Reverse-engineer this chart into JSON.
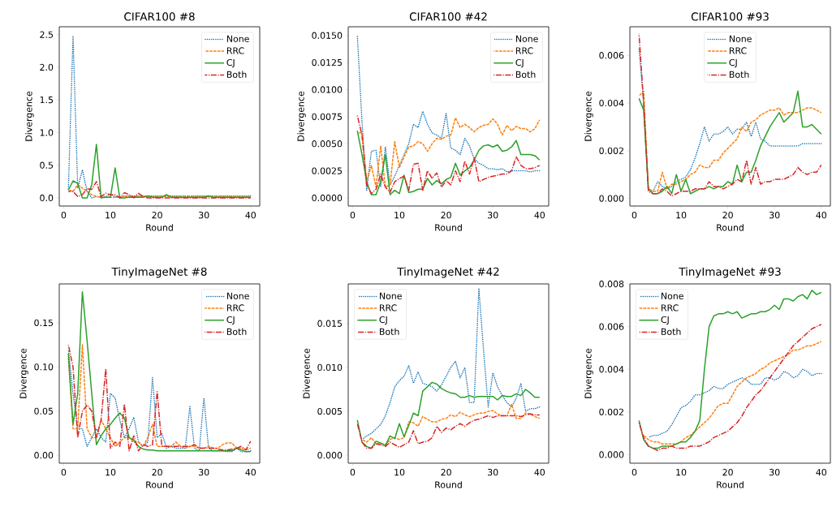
{
  "chart_data": [
    {
      "type": "line",
      "title": "CIFAR100  #8",
      "xlabel": "Round",
      "ylabel": "Divergence",
      "legend": "top right",
      "x": [
        1,
        2,
        3,
        4,
        5,
        6,
        7,
        8,
        9,
        10,
        11,
        12,
        13,
        14,
        15,
        16,
        17,
        18,
        19,
        20,
        21,
        22,
        23,
        24,
        25,
        26,
        27,
        28,
        29,
        30,
        31,
        32,
        33,
        34,
        35,
        36,
        37,
        38,
        39,
        40
      ],
      "xlim": [
        -0.95,
        41.95
      ],
      "xticks": [
        0,
        10,
        20,
        30,
        40
      ],
      "ylim": [
        -0.125,
        2.62
      ],
      "yticks": [
        {
          "value": 0,
          "label": "0.0"
        },
        {
          "value": 0.5,
          "label": "0.5"
        },
        {
          "value": 1,
          "label": "1.0"
        },
        {
          "value": 1.5,
          "label": "1.5"
        },
        {
          "value": 2,
          "label": "2.0"
        },
        {
          "value": 2.5,
          "label": "2.5"
        }
      ],
      "series": [
        {
          "name": "None",
          "color": "#1f77b4",
          "line_style": "dotted",
          "values": [
            0.13,
            2.48,
            0.15,
            0.43,
            0.1,
            0.0,
            0.02,
            0.01,
            0.02,
            0.05,
            0.02,
            0.0,
            0.03,
            0.03,
            0.03,
            0.03,
            0.03,
            0.03,
            0.03,
            0.03,
            0.03,
            0.03,
            0.03,
            0.03,
            0.03,
            0.03,
            0.03,
            0.03,
            0.03,
            0.03,
            0.03,
            0.03,
            0.03,
            0.03,
            0.03,
            0.03,
            0.03,
            0.03,
            0.03,
            0.03
          ]
        },
        {
          "name": "RRC",
          "color": "#ff7f0e",
          "line_style": "dashed",
          "values": [
            0.12,
            0.1,
            0.2,
            0.15,
            0.1,
            0.05,
            0.02,
            0.01,
            0.01,
            0.01,
            0.01,
            0.01,
            0.02,
            0.02,
            0.02,
            0.02,
            0.02,
            0.02,
            0.02,
            0.02,
            0.02,
            0.02,
            0.02,
            0.02,
            0.02,
            0.02,
            0.02,
            0.02,
            0.02,
            0.02,
            0.02,
            0.02,
            0.02,
            0.02,
            0.02,
            0.02,
            0.02,
            0.02,
            0.02,
            0.02
          ]
        },
        {
          "name": "CJ",
          "color": "#2ca02c",
          "line_style": "solid",
          "values": [
            0.12,
            0.26,
            0.22,
            0.0,
            0.0,
            0.2,
            0.82,
            0.0,
            0.01,
            0.01,
            0.46,
            0.0,
            0.0,
            0.01,
            0.01,
            0.01,
            0.01,
            0.03,
            0.01,
            0.01,
            0.01,
            0.05,
            0.01,
            0.01,
            0.01,
            0.01,
            0.01,
            0.01,
            0.01,
            0.01,
            0.03,
            0.01,
            0.01,
            0.01,
            0.01,
            0.01,
            0.01,
            0.01,
            0.01,
            0.01
          ]
        },
        {
          "name": "Both",
          "color": "#d62728",
          "line_style": "dashdot",
          "values": [
            0.1,
            0.1,
            0.02,
            0.05,
            0.14,
            0.13,
            0.25,
            0.02,
            0.07,
            0.05,
            0.05,
            0.0,
            0.08,
            0.05,
            0.0,
            0.07,
            0.02,
            0.0,
            0.0,
            0.0,
            0.0,
            0.0,
            0.0,
            0.0,
            0.0,
            0.0,
            0.0,
            0.0,
            0.0,
            0.0,
            0.0,
            0.0,
            0.0,
            0.0,
            0.0,
            0.0,
            0.0,
            0.0,
            0.0,
            0.0
          ]
        }
      ]
    },
    {
      "type": "line",
      "title": "CIFAR100  #42",
      "xlabel": "Round",
      "ylabel": "Divergence",
      "legend": "top right",
      "x": [
        1,
        2,
        3,
        4,
        5,
        6,
        7,
        8,
        9,
        10,
        11,
        12,
        13,
        14,
        15,
        16,
        17,
        18,
        19,
        20,
        21,
        22,
        23,
        24,
        25,
        26,
        27,
        28,
        29,
        30,
        31,
        32,
        33,
        34,
        35,
        36,
        37,
        38,
        39,
        40
      ],
      "xlim": [
        -0.95,
        41.95
      ],
      "xticks": [
        0,
        10,
        20,
        30,
        40
      ],
      "ylim": [
        -0.00075,
        0.0158
      ],
      "yticks": [
        {
          "value": 0,
          "label": "0.0000"
        },
        {
          "value": 0.0025,
          "label": "0.0025"
        },
        {
          "value": 0.005,
          "label": "0.0050"
        },
        {
          "value": 0.0075,
          "label": "0.0075"
        },
        {
          "value": 0.01,
          "label": "0.0100"
        },
        {
          "value": 0.0125,
          "label": "0.0125"
        },
        {
          "value": 0.015,
          "label": "0.0150"
        }
      ],
      "series": [
        {
          "name": "None",
          "color": "#1f77b4",
          "line_style": "dotted",
          "values": [
            0.015,
            0.007,
            0.0007,
            0.0043,
            0.0044,
            0.001,
            0.0047,
            0.0012,
            0.002,
            0.003,
            0.004,
            0.005,
            0.0068,
            0.0065,
            0.008,
            0.0068,
            0.006,
            0.0058,
            0.0055,
            0.0078,
            0.0046,
            0.0044,
            0.004,
            0.0055,
            0.0048,
            0.0036,
            0.0032,
            0.003,
            0.0027,
            0.0027,
            0.0026,
            0.0027,
            0.0024,
            0.0025,
            0.0025,
            0.0025,
            0.0025,
            0.0024,
            0.0025,
            0.0025
          ]
        },
        {
          "name": "RRC",
          "color": "#ff7f0e",
          "line_style": "dashed",
          "values": [
            0.006,
            0.006,
            0.0015,
            0.003,
            0.001,
            0.0048,
            0.001,
            0.0012,
            0.0052,
            0.0028,
            0.0038,
            0.0047,
            0.0048,
            0.0052,
            0.005,
            0.0043,
            0.005,
            0.0055,
            0.0054,
            0.0057,
            0.0058,
            0.0074,
            0.0065,
            0.0068,
            0.0065,
            0.0061,
            0.0065,
            0.0067,
            0.0068,
            0.0073,
            0.0068,
            0.0058,
            0.0067,
            0.0062,
            0.0066,
            0.0064,
            0.0064,
            0.0061,
            0.0064,
            0.0072
          ]
        },
        {
          "name": "CJ",
          "color": "#2ca02c",
          "line_style": "solid",
          "values": [
            0.0062,
            0.004,
            0.0015,
            0.0003,
            0.0003,
            0.0015,
            0.004,
            0.0003,
            0.0007,
            0.0004,
            0.0021,
            0.0005,
            0.0006,
            0.0008,
            0.0008,
            0.0018,
            0.0012,
            0.0016,
            0.0013,
            0.0017,
            0.0019,
            0.0032,
            0.0021,
            0.0025,
            0.0028,
            0.0035,
            0.0044,
            0.0048,
            0.0049,
            0.0047,
            0.0049,
            0.0043,
            0.0044,
            0.0047,
            0.0053,
            0.004,
            0.004,
            0.004,
            0.0039,
            0.0035
          ]
        },
        {
          "name": "Both",
          "color": "#d62728",
          "line_style": "dashdot",
          "values": [
            0.0076,
            0.0058,
            0.0012,
            0.0004,
            0.0008,
            0.0022,
            0.001,
            0.0005,
            0.0015,
            0.0018,
            0.002,
            0.0007,
            0.0031,
            0.0032,
            0.0007,
            0.0025,
            0.0018,
            0.0023,
            0.001,
            0.0016,
            0.0012,
            0.0025,
            0.0015,
            0.0034,
            0.0022,
            0.0037,
            0.0015,
            0.0017,
            0.0019,
            0.002,
            0.0021,
            0.0022,
            0.0022,
            0.0025,
            0.0038,
            0.003,
            0.0027,
            0.0027,
            0.0028,
            0.003
          ]
        }
      ]
    },
    {
      "type": "line",
      "title": "CIFAR100  #93",
      "xlabel": "Round",
      "ylabel": "Divergence",
      "legend": "top",
      "x": [
        1,
        2,
        3,
        4,
        5,
        6,
        7,
        8,
        9,
        10,
        11,
        12,
        13,
        14,
        15,
        16,
        17,
        18,
        19,
        20,
        21,
        22,
        23,
        24,
        25,
        26,
        27,
        28,
        29,
        30,
        31,
        32,
        33,
        34,
        35,
        36,
        37,
        38,
        39,
        40
      ],
      "xlim": [
        -0.95,
        41.95
      ],
      "xticks": [
        0,
        10,
        20,
        30,
        40
      ],
      "ylim": [
        -0.00032,
        0.0072
      ],
      "yticks": [
        {
          "value": 0,
          "label": "0.000"
        },
        {
          "value": 0.002,
          "label": "0.002"
        },
        {
          "value": 0.004,
          "label": "0.004"
        },
        {
          "value": 0.006,
          "label": "0.006"
        }
      ],
      "series": [
        {
          "name": "None",
          "color": "#1f77b4",
          "line_style": "dotted",
          "values": [
            0.0063,
            0.004,
            0.0004,
            0.0003,
            0.0007,
            0.0005,
            0.0004,
            0.0005,
            0.0007,
            0.0008,
            0.0009,
            0.0012,
            0.0017,
            0.0023,
            0.003,
            0.0024,
            0.0027,
            0.0027,
            0.0028,
            0.003,
            0.0027,
            0.0029,
            0.0029,
            0.0032,
            0.0026,
            0.0032,
            0.0025,
            0.0024,
            0.0022,
            0.0022,
            0.0022,
            0.0022,
            0.0022,
            0.0022,
            0.0022,
            0.0023,
            0.0023,
            0.0023,
            0.0023,
            0.0023
          ]
        },
        {
          "name": "RRC",
          "color": "#ff7f0e",
          "line_style": "dashed",
          "values": [
            0.0043,
            0.0045,
            0.0004,
            0.0003,
            0.0003,
            0.0011,
            0.0004,
            0.0006,
            0.0006,
            0.0007,
            0.0008,
            0.001,
            0.0011,
            0.0014,
            0.0013,
            0.0013,
            0.0016,
            0.0016,
            0.0019,
            0.0021,
            0.0023,
            0.0025,
            0.003,
            0.0028,
            0.0032,
            0.0033,
            0.0035,
            0.0036,
            0.0037,
            0.0037,
            0.0038,
            0.0035,
            0.0036,
            0.0036,
            0.0036,
            0.0037,
            0.0038,
            0.0038,
            0.0037,
            0.0036
          ]
        },
        {
          "name": "CJ",
          "color": "#2ca02c",
          "line_style": "solid",
          "values": [
            0.0042,
            0.0037,
            0.0004,
            0.0002,
            0.0002,
            0.0003,
            0.0005,
            0.0002,
            0.001,
            0.0003,
            0.0008,
            0.0002,
            0.0003,
            0.0004,
            0.0004,
            0.0005,
            0.0004,
            0.0005,
            0.0005,
            0.0007,
            0.0006,
            0.0014,
            0.0007,
            0.0011,
            0.0011,
            0.0016,
            0.0022,
            0.0026,
            0.003,
            0.0033,
            0.0036,
            0.0032,
            0.0034,
            0.0036,
            0.0045,
            0.003,
            0.003,
            0.0031,
            0.0029,
            0.0027
          ]
        },
        {
          "name": "Both",
          "color": "#d62728",
          "line_style": "dashdot",
          "values": [
            0.0069,
            0.004,
            0.0003,
            0.0002,
            0.0002,
            0.0004,
            0.0003,
            0.0001,
            0.0002,
            0.0003,
            0.0003,
            0.0003,
            0.0004,
            0.0004,
            0.0004,
            0.0007,
            0.0005,
            0.0005,
            0.0004,
            0.0005,
            0.0006,
            0.0008,
            0.0007,
            0.0016,
            0.0006,
            0.0013,
            0.0006,
            0.0007,
            0.0007,
            0.0008,
            0.0008,
            0.0008,
            0.0009,
            0.001,
            0.0013,
            0.0011,
            0.001,
            0.0011,
            0.0011,
            0.0014
          ]
        }
      ]
    },
    {
      "type": "line",
      "title": "TinyImageNet  #8",
      "xlabel": "Round",
      "ylabel": "Divergence",
      "legend": "top right",
      "x": [
        1,
        2,
        3,
        4,
        5,
        6,
        7,
        8,
        9,
        10,
        11,
        12,
        13,
        14,
        15,
        16,
        17,
        18,
        19,
        20,
        21,
        22,
        23,
        24,
        25,
        26,
        27,
        28,
        29,
        30,
        31,
        32,
        33,
        34,
        35,
        36,
        37,
        38,
        39,
        40
      ],
      "xlim": [
        -0.95,
        41.95
      ],
      "xticks": [
        0,
        10,
        20,
        30,
        40
      ],
      "ylim": [
        -0.009,
        0.194
      ],
      "yticks": [
        {
          "value": 0,
          "label": "0.00"
        },
        {
          "value": 0.05,
          "label": "0.05"
        },
        {
          "value": 0.1,
          "label": "0.10"
        },
        {
          "value": 0.15,
          "label": "0.15"
        }
      ],
      "series": [
        {
          "name": "None",
          "color": "#1f77b4",
          "line_style": "dotted",
          "values": [
            0.12,
            0.07,
            0.03,
            0.03,
            0.01,
            0.02,
            0.03,
            0.02,
            0.015,
            0.07,
            0.065,
            0.04,
            0.02,
            0.03,
            0.043,
            0.015,
            0.01,
            0.015,
            0.088,
            0.02,
            0.025,
            0.008,
            0.01,
            0.008,
            0.008,
            0.008,
            0.055,
            0.008,
            0.005,
            0.065,
            0.008,
            0.005,
            0.005,
            0.005,
            0.004,
            0.004,
            0.008,
            0.004,
            0.004,
            0.005
          ]
        },
        {
          "name": "RRC",
          "color": "#ff7f0e",
          "line_style": "dashed",
          "values": [
            0.11,
            0.03,
            0.03,
            0.125,
            0.03,
            0.02,
            0.02,
            0.04,
            0.03,
            0.02,
            0.01,
            0.015,
            0.02,
            0.02,
            0.015,
            0.015,
            0.01,
            0.02,
            0.035,
            0.01,
            0.01,
            0.01,
            0.01,
            0.015,
            0.01,
            0.008,
            0.01,
            0.01,
            0.008,
            0.008,
            0.01,
            0.008,
            0.008,
            0.012,
            0.014,
            0.014,
            0.008,
            0.008,
            0.006,
            0.008
          ]
        },
        {
          "name": "CJ",
          "color": "#2ca02c",
          "line_style": "solid",
          "values": [
            0.115,
            0.035,
            0.07,
            0.185,
            0.13,
            0.07,
            0.012,
            0.022,
            0.03,
            0.035,
            0.042,
            0.048,
            0.042,
            0.02,
            0.017,
            0.01,
            0.007,
            0.006,
            0.006,
            0.005,
            0.005,
            0.005,
            0.005,
            0.005,
            0.005,
            0.005,
            0.005,
            0.005,
            0.005,
            0.005,
            0.005,
            0.005,
            0.005,
            0.005,
            0.005,
            0.005,
            0.008,
            0.006,
            0.004,
            0.004
          ]
        },
        {
          "name": "Both",
          "color": "#d62728",
          "line_style": "dashdot",
          "values": [
            0.125,
            0.1,
            0.02,
            0.05,
            0.057,
            0.05,
            0.02,
            0.04,
            0.098,
            0.008,
            0.015,
            0.01,
            0.058,
            0.005,
            0.022,
            0.005,
            0.012,
            0.01,
            0.012,
            0.072,
            0.01,
            0.01,
            0.01,
            0.01,
            0.01,
            0.01,
            0.01,
            0.012,
            0.008,
            0.008,
            0.008,
            0.008,
            0.007,
            0.006,
            0.006,
            0.007,
            0.008,
            0.01,
            0.006,
            0.016
          ]
        }
      ]
    },
    {
      "type": "line",
      "title": "TinyImageNet  #42",
      "xlabel": "Round",
      "ylabel": "Divergence",
      "legend": "top left",
      "x": [
        1,
        2,
        3,
        4,
        5,
        6,
        7,
        8,
        9,
        10,
        11,
        12,
        13,
        14,
        15,
        16,
        17,
        18,
        19,
        20,
        21,
        22,
        23,
        24,
        25,
        26,
        27,
        28,
        29,
        30,
        31,
        32,
        33,
        34,
        35,
        36,
        37,
        38,
        39,
        40
      ],
      "xlim": [
        -0.95,
        41.95
      ],
      "xticks": [
        0,
        10,
        20,
        30,
        40
      ],
      "ylim": [
        -0.0009,
        0.0195
      ],
      "yticks": [
        {
          "value": 0,
          "label": "0.000"
        },
        {
          "value": 0.005,
          "label": "0.005"
        },
        {
          "value": 0.01,
          "label": "0.010"
        },
        {
          "value": 0.015,
          "label": "0.015"
        }
      ],
      "series": [
        {
          "name": "None",
          "color": "#1f77b4",
          "line_style": "dotted",
          "values": [
            null,
            0.0018,
            0.0022,
            0.0025,
            0.003,
            0.0035,
            0.0045,
            0.006,
            0.0078,
            0.0085,
            0.009,
            0.0102,
            0.0082,
            0.0095,
            0.0082,
            0.008,
            0.0078,
            0.0073,
            0.008,
            0.009,
            0.01,
            0.0107,
            0.0088,
            0.01,
            0.006,
            0.006,
            0.019,
            0.012,
            0.0055,
            0.0094,
            0.0078,
            0.0068,
            0.006,
            0.0055,
            0.0065,
            0.0082,
            0.005,
            0.0053,
            0.0053,
            0.0055
          ]
        },
        {
          "name": "RRC",
          "color": "#ff7f0e",
          "line_style": "dashed",
          "values": [
            null,
            0.0018,
            0.0015,
            0.002,
            0.0013,
            0.0014,
            0.0012,
            0.0018,
            0.002,
            0.0018,
            0.002,
            0.0038,
            0.0037,
            0.0033,
            0.0044,
            0.0041,
            0.0038,
            0.0038,
            0.0041,
            0.0042,
            0.0046,
            0.0044,
            0.0049,
            0.0046,
            0.0044,
            0.0046,
            0.0048,
            0.0048,
            0.005,
            0.0051,
            0.0047,
            0.0045,
            0.0045,
            0.0058,
            0.0042,
            0.0042,
            0.0048,
            0.0047,
            0.0044,
            0.0042
          ]
        },
        {
          "name": "CJ",
          "color": "#2ca02c",
          "line_style": "solid",
          "values": [
            0.004,
            0.0015,
            0.001,
            0.0008,
            0.0016,
            0.0014,
            0.0011,
            0.0022,
            0.0019,
            0.0036,
            0.0021,
            0.0034,
            0.0048,
            0.0045,
            0.0073,
            0.0078,
            0.0083,
            0.0081,
            0.0076,
            0.0073,
            0.0071,
            0.007,
            0.0066,
            0.0066,
            0.0068,
            0.0066,
            0.0067,
            0.0067,
            0.0067,
            0.0067,
            0.0063,
            0.0068,
            0.0067,
            0.0067,
            0.007,
            0.0068,
            0.0075,
            0.0071,
            0.0066,
            0.0066
          ]
        },
        {
          "name": "Both",
          "color": "#d62728",
          "line_style": "dashdot",
          "values": [
            0.0036,
            0.0015,
            0.0008,
            0.0008,
            0.0013,
            0.0012,
            0.001,
            0.0015,
            0.0012,
            0.0009,
            0.0012,
            0.0015,
            0.0028,
            0.0013,
            0.0015,
            0.0016,
            0.002,
            0.0033,
            0.0026,
            0.0031,
            0.0029,
            0.0033,
            0.0036,
            0.0033,
            0.0037,
            0.004,
            0.0041,
            0.0043,
            0.0045,
            0.0043,
            0.0045,
            0.0045,
            0.0045,
            0.0045,
            0.0045,
            0.0044,
            0.0046,
            0.0047,
            0.0046,
            0.0046
          ]
        }
      ]
    },
    {
      "type": "line",
      "title": "TinyImageNet  #93",
      "xlabel": "Round",
      "ylabel": "Divergence",
      "legend": "top left",
      "x": [
        1,
        2,
        3,
        4,
        5,
        6,
        7,
        8,
        9,
        10,
        11,
        12,
        13,
        14,
        15,
        16,
        17,
        18,
        19,
        20,
        21,
        22,
        23,
        24,
        25,
        26,
        27,
        28,
        29,
        30,
        31,
        32,
        33,
        34,
        35,
        36,
        37,
        38,
        39,
        40
      ],
      "xlim": [
        -0.95,
        41.95
      ],
      "xticks": [
        0,
        10,
        20,
        30,
        40
      ],
      "ylim": [
        -0.0004,
        0.008
      ],
      "yticks": [
        {
          "value": 0,
          "label": "0.000"
        },
        {
          "value": 0.002,
          "label": "0.002"
        },
        {
          "value": 0.004,
          "label": "0.004"
        },
        {
          "value": 0.006,
          "label": "0.006"
        },
        {
          "value": 0.008,
          "label": "0.008"
        }
      ],
      "series": [
        {
          "name": "None",
          "color": "#1f77b4",
          "line_style": "dotted",
          "values": [
            null,
            null,
            0.0008,
            0.0009,
            0.0009,
            0.001,
            0.0011,
            0.0014,
            0.0018,
            0.0022,
            0.0023,
            0.0025,
            0.0028,
            0.0028,
            0.0029,
            0.003,
            0.0032,
            0.0031,
            0.0031,
            0.0033,
            0.0034,
            0.0035,
            0.0036,
            0.0035,
            0.0033,
            0.0033,
            0.0033,
            0.0036,
            0.0036,
            0.0035,
            0.0036,
            0.0039,
            0.0038,
            0.0036,
            0.0037,
            0.004,
            0.0039,
            0.0037,
            0.0038,
            0.0038
          ]
        },
        {
          "name": "RRC",
          "color": "#ff7f0e",
          "line_style": "dashed",
          "values": [
            null,
            0.0009,
            0.0007,
            0.0006,
            0.0006,
            0.0005,
            0.0005,
            0.0005,
            0.0005,
            0.0006,
            0.0008,
            0.0009,
            0.0011,
            0.0013,
            0.0015,
            0.0017,
            0.002,
            0.0023,
            0.0024,
            0.0024,
            0.0028,
            0.0032,
            0.0034,
            0.0036,
            0.0037,
            0.0038,
            0.004,
            0.0041,
            0.0043,
            0.0044,
            0.0045,
            0.0046,
            0.0047,
            0.0049,
            0.0049,
            0.005,
            0.0051,
            0.0051,
            0.0052,
            0.0053
          ]
        },
        {
          "name": "CJ",
          "color": "#2ca02c",
          "line_style": "solid",
          "values": [
            0.0016,
            0.0007,
            0.0004,
            0.0003,
            0.0003,
            0.0004,
            0.0004,
            0.0004,
            0.0005,
            0.0006,
            0.0006,
            0.0008,
            0.0011,
            0.0016,
            0.004,
            0.006,
            0.0065,
            0.0066,
            0.0066,
            0.0067,
            0.0066,
            0.0067,
            0.0064,
            0.0065,
            0.0066,
            0.0066,
            0.0067,
            0.0067,
            0.0068,
            0.007,
            0.0068,
            0.0073,
            0.0073,
            0.0072,
            0.0074,
            0.0075,
            0.0073,
            0.0077,
            0.0075,
            0.0076
          ]
        },
        {
          "name": "Both",
          "color": "#d62728",
          "line_style": "dashdot",
          "values": [
            0.0015,
            0.0008,
            0.0004,
            0.0003,
            0.0002,
            0.0003,
            0.0003,
            0.0004,
            0.0003,
            0.0003,
            0.0003,
            0.0004,
            0.0004,
            0.0004,
            0.0005,
            0.0006,
            0.0008,
            0.0009,
            0.001,
            0.0011,
            0.0013,
            0.0015,
            0.0018,
            0.0022,
            0.0025,
            0.0028,
            0.003,
            0.0033,
            0.0036,
            0.0039,
            0.0042,
            0.0045,
            0.0048,
            0.0051,
            0.0053,
            0.0055,
            0.0057,
            0.0059,
            0.006,
            0.0061
          ]
        }
      ]
    }
  ]
}
